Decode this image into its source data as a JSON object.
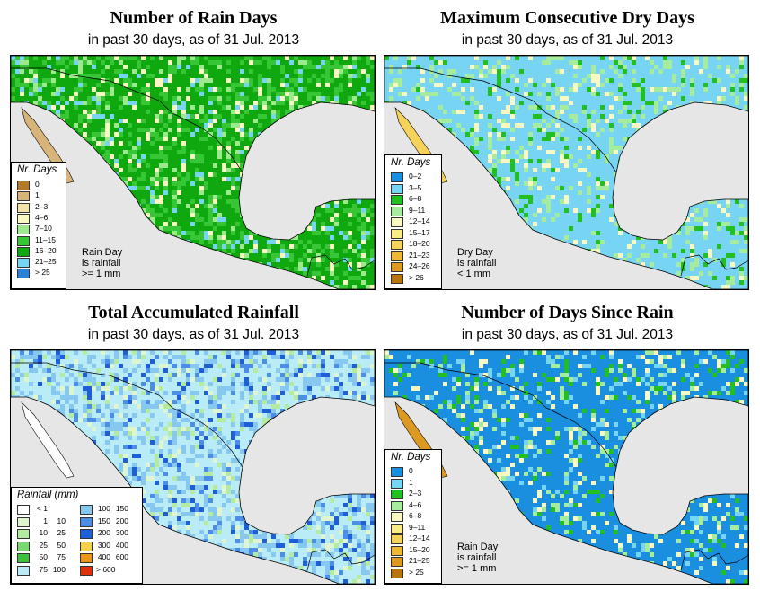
{
  "panels": [
    {
      "title": "Number of Rain Days",
      "subtitle": "in past 30 days, as of  31 Jul. 2013",
      "legend_title": "Nr. Days",
      "legend": [
        {
          "label": "0",
          "color": "#b07a2a"
        },
        {
          "label": "1",
          "color": "#d9b47a"
        },
        {
          "label": "2–3",
          "color": "#f4e3a6"
        },
        {
          "label": "4–6",
          "color": "#f9f7c2"
        },
        {
          "label": "7–10",
          "color": "#9ee88d"
        },
        {
          "label": "11–15",
          "color": "#36c636"
        },
        {
          "label": "16–20",
          "color": "#0fa80f"
        },
        {
          "label": "21–25",
          "color": "#77d4f2"
        },
        {
          "label": "> 25",
          "color": "#2a82d8"
        }
      ],
      "note": [
        "Rain Day",
        "is rainfall",
        ">= 1 mm"
      ]
    },
    {
      "title": "Maximum Consecutive Dry Days",
      "subtitle": "in past 30 days, as of  31 Jul. 2013",
      "legend_title": "Nr. Days",
      "legend": [
        {
          "label": "0–2",
          "color": "#1a8fe0"
        },
        {
          "label": "3–5",
          "color": "#77d4f2"
        },
        {
          "label": "6–8",
          "color": "#22bf22"
        },
        {
          "label": "9–11",
          "color": "#a6ec9e"
        },
        {
          "label": "12–14",
          "color": "#f9f7c2"
        },
        {
          "label": "15–17",
          "color": "#f9ec86"
        },
        {
          "label": "18–20",
          "color": "#f5d25a"
        },
        {
          "label": "21–23",
          "color": "#edb83a"
        },
        {
          "label": "24–26",
          "color": "#dd9a22"
        },
        {
          "label": "> 26",
          "color": "#b8740e"
        }
      ],
      "note": [
        "Dry Day",
        "is rainfall",
        "< 1 mm"
      ]
    },
    {
      "title": "Total Accumulated Rainfall",
      "subtitle": "in past 30 days, as of  31 Jul. 2013",
      "legend_title": "Rainfall (mm)",
      "legend_left": [
        {
          "lo": "< 1",
          "hi": "",
          "color": "#ffffff"
        },
        {
          "lo": "1",
          "hi": "10",
          "color": "#dff5d0"
        },
        {
          "lo": "10",
          "hi": "25",
          "color": "#b3eca0"
        },
        {
          "lo": "25",
          "hi": "50",
          "color": "#7ad872"
        },
        {
          "lo": "50",
          "hi": "75",
          "color": "#3fbf3f"
        },
        {
          "lo": "75",
          "hi": "100",
          "color": "#b9ecf6"
        }
      ],
      "legend_right": [
        {
          "lo": "100",
          "hi": "150",
          "color": "#86c8f0"
        },
        {
          "lo": "150",
          "hi": "200",
          "color": "#4a8ee8"
        },
        {
          "lo": "200",
          "hi": "300",
          "color": "#1e5ed8"
        },
        {
          "lo": "300",
          "hi": "400",
          "color": "#f5d24a"
        },
        {
          "lo": "400",
          "hi": "600",
          "color": "#f0951c"
        },
        {
          "lo": "> 600",
          "hi": "",
          "color": "#e0300a"
        }
      ]
    },
    {
      "title": "Number of Days Since Rain",
      "subtitle": "in past 30 days, as of  31 Jul. 2013",
      "legend_title": "Nr. Days",
      "legend": [
        {
          "label": "0",
          "color": "#1a8fe0"
        },
        {
          "label": "1",
          "color": "#77d4f2"
        },
        {
          "label": "2–3",
          "color": "#22bf22"
        },
        {
          "label": "4–6",
          "color": "#a6ec9e"
        },
        {
          "label": "6–8",
          "color": "#f9f7c2"
        },
        {
          "label": "9–11",
          "color": "#f9ec86"
        },
        {
          "label": "12–14",
          "color": "#f5d25a"
        },
        {
          "label": "15–20",
          "color": "#edb83a"
        },
        {
          "label": "21–25",
          "color": "#dd9a22"
        },
        {
          "label": "> 25",
          "color": "#b8740e"
        }
      ],
      "note": [
        "Rain Day",
        "is rainfall",
        ">= 1 mm"
      ]
    }
  ]
}
